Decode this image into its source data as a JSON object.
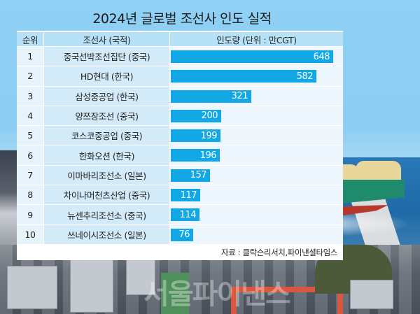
{
  "title": "2024년 글로벌 조선사 인도 실적",
  "table": {
    "headers": {
      "rank": "순위",
      "company": "조선사 (국적)",
      "delivery": "인도량 (단위 : 만CGT)"
    },
    "rows": [
      {
        "rank": "1",
        "company": "중국선박조선집단 (중국)",
        "value": "648"
      },
      {
        "rank": "2",
        "company": "HD현대 (한국)",
        "value": "582"
      },
      {
        "rank": "3",
        "company": "삼성중공업 (한국)",
        "value": "321"
      },
      {
        "rank": "4",
        "company": "양쯔장조선 (중국)",
        "value": "200"
      },
      {
        "rank": "5",
        "company": "코스코중공업 (중국)",
        "value": "199"
      },
      {
        "rank": "6",
        "company": "한화오션 (한국)",
        "value": "196"
      },
      {
        "rank": "7",
        "company": "이마바리조선소 (일본)",
        "value": "157"
      },
      {
        "rank": "8",
        "company": "차이나머천츠산업 (중국)",
        "value": "117"
      },
      {
        "rank": "9",
        "company": "뉴센추리조선소 (중국)",
        "value": "114"
      },
      {
        "rank": "10",
        "company": "쓰네이시조선소 (일본)",
        "value": "76"
      }
    ],
    "source": "자료 : 클락슨리서치,파이낸셜타임스"
  },
  "watermark": "서울파이낸스",
  "colors": {
    "bar": "#12a8e6",
    "header_bg": "#b7e1f6",
    "name_cell_bg": "#d3ebf8",
    "sky": "#8fd0f5"
  },
  "chart_data": {
    "type": "bar",
    "orientation": "horizontal",
    "title": "2024년 글로벌 조선사 인도 실적",
    "xlabel": "인도량 (단위 : 만CGT)",
    "ylabel": "조선사 (국적)",
    "categories": [
      "중국선박조선집단 (중국)",
      "HD현대 (한국)",
      "삼성중공업 (한국)",
      "양쯔장조선 (중국)",
      "코스코중공업 (중국)",
      "한화오션 (한국)",
      "이마바리조선소 (일본)",
      "차이나머천츠산업 (중국)",
      "뉴센추리조선소 (중국)",
      "쓰네이시조선소 (일본)"
    ],
    "ranks": [
      1,
      2,
      3,
      4,
      5,
      6,
      7,
      8,
      9,
      10
    ],
    "values": [
      648,
      582,
      321,
      200,
      199,
      196,
      157,
      117,
      114,
      76
    ],
    "unit": "만CGT",
    "data_labels": true,
    "grid": false,
    "legend": null,
    "source": "자료 : 클락슨리서치,파이낸셜타임스"
  }
}
